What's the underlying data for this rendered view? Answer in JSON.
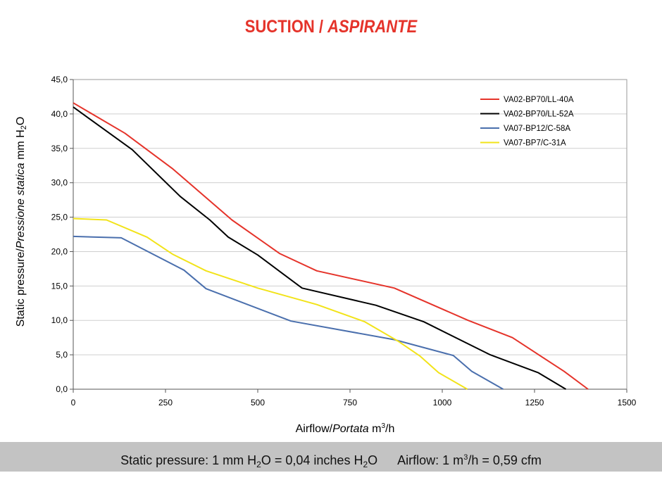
{
  "title": {
    "main": "SUCTION /",
    "italic": "ASPIRANTE"
  },
  "yaxis": {
    "label_part1": "Static pressure",
    "label_sep": "/",
    "label_part2_italic": "Pressione statica",
    "label_unit_pre": " mm H",
    "label_unit_sub": "2",
    "label_unit_post": "O"
  },
  "xaxis": {
    "label_part1": "Airflow",
    "label_sep": "/",
    "label_part2_italic": "Portata",
    "label_unit_pre": " m",
    "label_unit_sup": "3",
    "label_unit_post": "/h"
  },
  "footer": {
    "p1": "Static pressure: 1 mm H",
    "p1_sub": "2",
    "p2": "O = 0,04 inches H",
    "p2_sub": "2",
    "p3": "O",
    "p4": "Airflow: 1 m",
    "p4_sup": "3",
    "p5": "/h = 0,59 cfm"
  },
  "chart_data": {
    "type": "line",
    "xlim": [
      0,
      1500
    ],
    "ylim": [
      0,
      45
    ],
    "x_ticks": [
      "0",
      "250",
      "500",
      "750",
      "1000",
      "1250",
      "1500"
    ],
    "y_ticks": [
      "0,0",
      "5,0",
      "10,0",
      "15,0",
      "20,0",
      "25,0",
      "30,0",
      "35,0",
      "40,0",
      "45,0"
    ],
    "grid": "horizontal",
    "legend_position": "top-right",
    "series": [
      {
        "name": "VA02-BP70/LL-40A",
        "color": "#e5332a",
        "points": [
          [
            0,
            41.6
          ],
          [
            140,
            37.2
          ],
          [
            270,
            32.0
          ],
          [
            430,
            24.6
          ],
          [
            560,
            19.7
          ],
          [
            660,
            17.2
          ],
          [
            870,
            14.7
          ],
          [
            1070,
            10.0
          ],
          [
            1190,
            7.5
          ],
          [
            1330,
            2.6
          ],
          [
            1395,
            0
          ]
        ]
      },
      {
        "name": "VA02-BP70/LL-52A",
        "color": "#000000",
        "points": [
          [
            0,
            41.0
          ],
          [
            160,
            34.8
          ],
          [
            290,
            28.0
          ],
          [
            370,
            24.6
          ],
          [
            420,
            22.1
          ],
          [
            500,
            19.5
          ],
          [
            560,
            17.1
          ],
          [
            620,
            14.7
          ],
          [
            820,
            12.2
          ],
          [
            950,
            9.8
          ],
          [
            1130,
            5.0
          ],
          [
            1260,
            2.4
          ],
          [
            1335,
            0
          ]
        ]
      },
      {
        "name": "VA07-BP12/C-58A",
        "color": "#4a6fad",
        "points": [
          [
            0,
            22.2
          ],
          [
            130,
            22.0
          ],
          [
            300,
            17.3
          ],
          [
            360,
            14.6
          ],
          [
            590,
            9.9
          ],
          [
            870,
            7.2
          ],
          [
            1030,
            4.9
          ],
          [
            1080,
            2.6
          ],
          [
            1165,
            0
          ]
        ]
      },
      {
        "name": "VA07-BP7/C-31A",
        "color": "#f2e319",
        "points": [
          [
            0,
            24.8
          ],
          [
            90,
            24.6
          ],
          [
            200,
            22.1
          ],
          [
            270,
            19.6
          ],
          [
            360,
            17.2
          ],
          [
            500,
            14.7
          ],
          [
            660,
            12.3
          ],
          [
            790,
            9.8
          ],
          [
            880,
            7.0
          ],
          [
            940,
            4.8
          ],
          [
            990,
            2.4
          ],
          [
            1068,
            0
          ]
        ]
      }
    ]
  }
}
